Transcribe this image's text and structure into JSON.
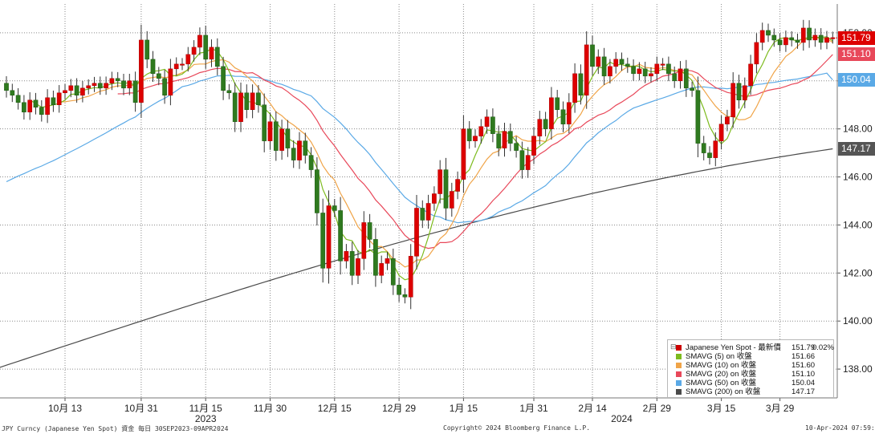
{
  "chart_data": {
    "type": "candlestick",
    "instrument": "Japanese Yen Spot",
    "ylim": [
      136.8,
      153.2
    ],
    "y_ticks": [
      {
        "value": 138,
        "label": "138.00"
      },
      {
        "value": 140,
        "label": "140.00"
      },
      {
        "value": 142,
        "label": "142.00"
      },
      {
        "value": 144,
        "label": "144.00"
      },
      {
        "value": 146,
        "label": "146.00"
      },
      {
        "value": 148,
        "label": "148.00"
      },
      {
        "value": 150,
        "label": "150.00"
      },
      {
        "value": 152,
        "label": "152.00"
      }
    ],
    "x_ticks": [
      {
        "index": 10,
        "label": "10月 13"
      },
      {
        "index": 23,
        "label": "10月 31"
      },
      {
        "index": 34,
        "label": "11月 15"
      },
      {
        "index": 45,
        "label": "11月 30"
      },
      {
        "index": 56,
        "label": "12月 15"
      },
      {
        "index": 67,
        "label": "12月 29"
      },
      {
        "index": 78,
        "label": "1月 15"
      },
      {
        "index": 90,
        "label": "1月 31"
      },
      {
        "index": 100,
        "label": "2月 14"
      },
      {
        "index": 111,
        "label": "2月 29"
      },
      {
        "index": 122,
        "label": "3月 15"
      },
      {
        "index": 132,
        "label": "3月 29"
      }
    ],
    "year_labels": [
      {
        "index": 34,
        "label": "2023"
      },
      {
        "index": 105,
        "label": "2024"
      }
    ],
    "grid": true,
    "closes": [
      149.6,
      149.4,
      149.1,
      148.7,
      149.2,
      148.9,
      148.6,
      149.3,
      149.0,
      149.5,
      149.6,
      149.8,
      149.4,
      149.7,
      149.8,
      149.9,
      149.7,
      149.9,
      150.1,
      150.0,
      149.7,
      150.0,
      149.1,
      151.7,
      150.9,
      150.3,
      150.1,
      149.4,
      150.5,
      150.7,
      150.7,
      151.1,
      151.4,
      151.9,
      150.9,
      151.4,
      150.6,
      149.6,
      149.5,
      148.3,
      149.5,
      148.8,
      149.5,
      149.0,
      147.5,
      148.3,
      147.1,
      148.0,
      147.2,
      146.7,
      147.5,
      146.9,
      146.3,
      144.5,
      142.2,
      144.8,
      144.6,
      142.5,
      142.9,
      141.9,
      142.6,
      144.1,
      143.4,
      141.9,
      142.4,
      142.6,
      141.5,
      141.1,
      141.0,
      142.7,
      144.7,
      144.2,
      144.9,
      145.3,
      146.3,
      144.7,
      145.4,
      145.9,
      148.0,
      147.5,
      147.7,
      148.1,
      148.5,
      147.8,
      147.2,
      147.9,
      147.4,
      147.1,
      146.3,
      146.9,
      147.7,
      148.4,
      148.0,
      149.3,
      148.8,
      148.2,
      149.1,
      150.3,
      149.4,
      151.5,
      150.6,
      151.0,
      150.2,
      150.6,
      150.9,
      150.7,
      150.6,
      150.3,
      150.5,
      150.2,
      150.3,
      150.7,
      150.7,
      150.3,
      150.0,
      150.5,
      149.7,
      149.6,
      147.4,
      147.0,
      146.8,
      147.5,
      148.2,
      148.5,
      149.9,
      149.2,
      149.8,
      150.7,
      151.6,
      152.1,
      151.9,
      151.7,
      151.5,
      151.8,
      151.7,
      151.6,
      152.2,
      151.7,
      151.9,
      151.6,
      151.8,
      151.8
    ],
    "series": [
      {
        "name": "Japanese Yen Spot - 最新價",
        "color": "#cc0000",
        "last": "151.79",
        "change": "0.02%"
      },
      {
        "name": "SMAVG (5)  on 收盤",
        "color": "#7dbb1e",
        "last": "151.66",
        "ylast": 151.66
      },
      {
        "name": "SMAVG (10)  on 收盤",
        "color": "#f0a448",
        "last": "151.60",
        "ylast": 151.6
      },
      {
        "name": "SMAVG (20)  on 收盤",
        "color": "#e8485a",
        "last": "151.10",
        "ylast": 151.1
      },
      {
        "name": "SMAVG (50)  on 收盤",
        "color": "#5aa9e6",
        "last": "150.04",
        "ylast": 150.04
      },
      {
        "name": "SMAVG (200)  on 收盤",
        "color": "#4a4a4a",
        "last": "147.17",
        "ylast": 147.17
      }
    ],
    "price_tags": [
      {
        "label": "151.79",
        "value": 151.79,
        "color": "#dd0000"
      },
      {
        "label": "151.10",
        "value": 151.1,
        "color": "#e8485a"
      },
      {
        "label": "150.04",
        "value": 150.04,
        "color": "#5aa9e6"
      },
      {
        "label": "147.17",
        "value": 147.17,
        "color": "#555555"
      }
    ]
  },
  "footer": {
    "left": "JPY Curncy (Japanese Yen Spot) 資金  每日 30SEP2023-09APR2024",
    "center": "Copyright© 2024 Bloomberg Finance L.P.",
    "right": "10-Apr-2024 07:59:37"
  },
  "legend_collapse": "⊟"
}
